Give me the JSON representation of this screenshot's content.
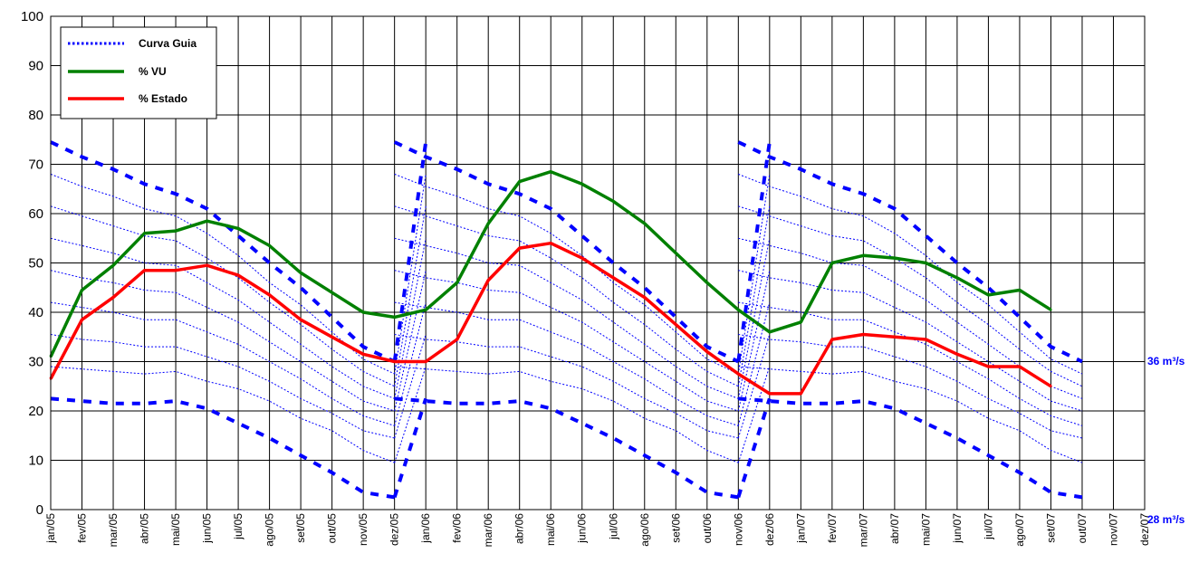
{
  "chart_data": {
    "type": "line",
    "title": "",
    "xlabel": "",
    "ylabel": "",
    "ylim": [
      0,
      100
    ],
    "yticks": [
      0,
      10,
      20,
      30,
      40,
      50,
      60,
      70,
      80,
      90,
      100
    ],
    "grid": true,
    "legend_position": "top-left",
    "categories": [
      "jan/05",
      "fev/05",
      "mar/05",
      "abr/05",
      "mai/05",
      "jun/05",
      "jul/05",
      "ago/05",
      "set/05",
      "out/05",
      "nov/05",
      "dez/05",
      "jan/06",
      "fev/06",
      "mar/06",
      "abr/06",
      "mai/06",
      "jun/06",
      "jul/06",
      "ago/06",
      "set/06",
      "out/06",
      "nov/06",
      "dez/06",
      "jan/07",
      "fev/07",
      "mar/07",
      "abr/07",
      "mai/07",
      "jun/07",
      "jul/07",
      "ago/07",
      "set/07",
      "out/07",
      "nov/07",
      "dez/07"
    ],
    "legend": [
      {
        "label": "Curva Guia",
        "color": "#0000ff",
        "style": "dotted"
      },
      {
        "label": "% VU",
        "color": "#008000",
        "style": "solid"
      },
      {
        "label": "% Estado",
        "color": "#ff0000",
        "style": "solid"
      }
    ],
    "series": [
      {
        "name": "% VU",
        "color": "#008000",
        "values": [
          31,
          44.5,
          49.5,
          56,
          56.5,
          58.5,
          57,
          53.5,
          48,
          44,
          40,
          39,
          40.5,
          46,
          58,
          66.5,
          68.5,
          66,
          62.5,
          58,
          52,
          46,
          40.5,
          36,
          38,
          50,
          51.5,
          51,
          50,
          47,
          43.5,
          44.5,
          40.5,
          null,
          null,
          null
        ]
      },
      {
        "name": "% Estado",
        "color": "#ff0000",
        "values": [
          26.5,
          38.5,
          43,
          48.5,
          48.5,
          49.5,
          47.5,
          43.5,
          38.5,
          35,
          31.5,
          30,
          30,
          34.5,
          46.5,
          53,
          54,
          51,
          47,
          43,
          37.5,
          32,
          27.5,
          23.5,
          23.5,
          34.5,
          35.5,
          35,
          34.5,
          31.5,
          29,
          29,
          25,
          null,
          null,
          null
        ]
      }
    ],
    "guide_curves": {
      "color": "#0000ff",
      "upper_bound": [
        74.5,
        71.5,
        69,
        66,
        64,
        61,
        55.5,
        50,
        45,
        39,
        33,
        30
      ],
      "lower_bound": [
        22.5,
        22,
        21.5,
        21.5,
        22,
        20.5,
        17.5,
        14.5,
        11,
        7.5,
        3.5,
        2.5
      ],
      "intermediate": [
        [
          68,
          65.5,
          63.5,
          61,
          59.5,
          56,
          51.5,
          46,
          41.5,
          36,
          30.5,
          27.5
        ],
        [
          61.5,
          59.5,
          57.5,
          55.5,
          54.5,
          51,
          47,
          42,
          37.5,
          32.5,
          28,
          25
        ],
        [
          55,
          53.5,
          52,
          50,
          49.5,
          46,
          42.5,
          38,
          33.5,
          29,
          25,
          22.5
        ],
        [
          48.5,
          47,
          46,
          44.5,
          44,
          41,
          38,
          34,
          30,
          26,
          22,
          20
        ],
        [
          42,
          41,
          40,
          38.5,
          38.5,
          36,
          33.5,
          30,
          26.5,
          22.5,
          19,
          17
        ],
        [
          35.5,
          34.5,
          34,
          33,
          33,
          31,
          29,
          26,
          22.5,
          19.5,
          16,
          14.5
        ],
        [
          29,
          28.5,
          28,
          27.5,
          28,
          26,
          24.5,
          22,
          18.5,
          16,
          12,
          9.5
        ]
      ]
    },
    "annotations": [
      {
        "text": "36 m³/s",
        "color": "#0000ff"
      },
      {
        "text": "28 m³/s",
        "color": "#0000ff"
      }
    ]
  }
}
